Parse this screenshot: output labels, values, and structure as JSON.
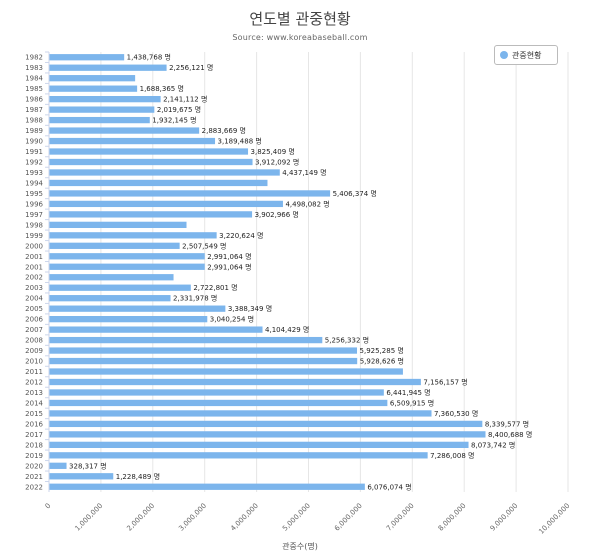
{
  "chart_data": {
    "type": "bar",
    "orientation": "horizontal",
    "title": "연도별 관중현황",
    "subtitle": "Source: www.koreabaseball.com",
    "xlabel": "관중수(명)",
    "ylabel": "",
    "xlim": [
      0,
      10000000
    ],
    "x_ticks": [
      "0",
      "1,000,000",
      "2,000,000",
      "3,000,000",
      "4,000,000",
      "5,000,000",
      "6,000,000",
      "7,000,000",
      "8,000,000",
      "9,000,000",
      "10,000,000"
    ],
    "grid": true,
    "legend": {
      "position": "top-right",
      "label": "관중현황"
    },
    "color": "#7cb5ec",
    "value_suffix": " 명",
    "categories": [
      "1982",
      "1983",
      "1984",
      "1985",
      "1986",
      "1987",
      "1988",
      "1989",
      "1990",
      "1991",
      "1992",
      "1993",
      "1994",
      "1995",
      "1996",
      "1997",
      "1998",
      "1999",
      "2000",
      "2001",
      "2001",
      "2002",
      "2003",
      "2004",
      "2005",
      "2006",
      "2007",
      "2008",
      "2009",
      "2010",
      "2011",
      "2012",
      "2013",
      "2014",
      "2015",
      "2016",
      "2017",
      "2018",
      "2019",
      "2020",
      "2021",
      "2022"
    ],
    "values": [
      1438768,
      2256121,
      1650000,
      1688365,
      2141112,
      2019675,
      1932145,
      2883669,
      3189488,
      3825409,
      3912092,
      4437149,
      4200000,
      5406374,
      4498082,
      3902966,
      2640000,
      3220624,
      2507549,
      2991064,
      2991064,
      2390000,
      2722801,
      2331978,
      3388349,
      3040254,
      4104429,
      5256332,
      5925285,
      5928626,
      6810000,
      7156157,
      6441945,
      6509915,
      7360530,
      8339577,
      8400688,
      8073742,
      7286008,
      328317,
      1228489,
      6076074
    ],
    "labels": [
      "1,438,768 명",
      "2,256,121 명",
      "",
      "1,688,365 명",
      "2,141,112 명",
      "2,019,675 명",
      "1,932,145 명",
      "2,883,669 명",
      "3,189,488 명",
      "3,825,409 명",
      "3,912,092 명",
      "4,437,149 명",
      "",
      "5,406,374 명",
      "4,498,082 명",
      "3,902,966 명",
      "",
      "3,220,624 명",
      "2,507,549 명",
      "2,991,064 명",
      "2,991,064 명",
      "",
      "2,722,801 명",
      "2,331,978 명",
      "3,388,349 명",
      "3,040,254 명",
      "4,104,429 명",
      "5,256,332 명",
      "5,925,285 명",
      "5,928,626 명",
      "",
      "7,156,157 명",
      "6,441,945 명",
      "6,509,915 명",
      "7,360,530 명",
      "8,339,577 명",
      "8,400,688 명",
      "8,073,742 명",
      "7,286,008 명",
      "328,317 명",
      "1,228,489 명",
      "6,076,074 명"
    ]
  }
}
